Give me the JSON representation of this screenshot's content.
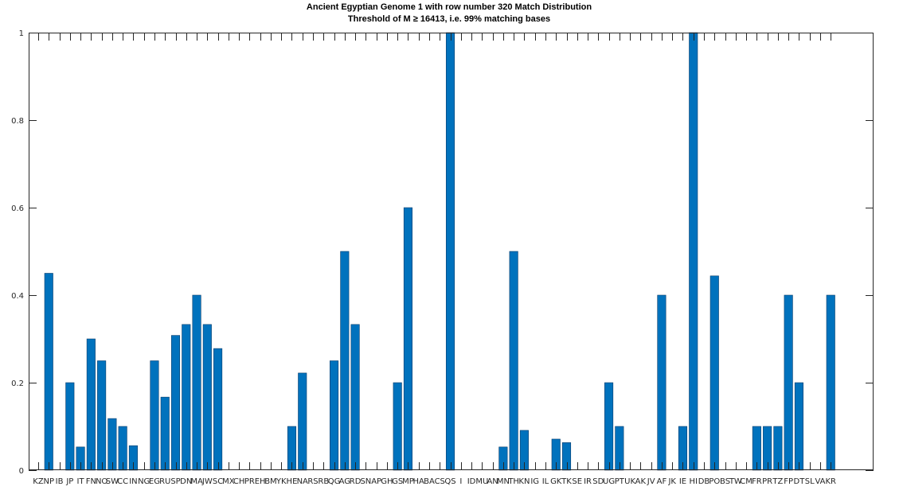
{
  "chart_data": {
    "type": "bar",
    "title": "Ancient Egyptian Genome 1 with row number 320 Match Distribution",
    "subtitle": "Threshold of M ≥ 16413, i.e. 99% matching bases",
    "xlabel": "",
    "ylabel": "",
    "ylim": [
      0,
      1
    ],
    "yticks": [
      0,
      0.2,
      0.4,
      0.6,
      0.8,
      1
    ],
    "ytick_labels": [
      "0",
      "0.2",
      "0.4",
      "0.6",
      "0.8",
      "1"
    ],
    "grid": false,
    "bar_color": "#0072bd",
    "categories": [
      "KZ",
      "NP",
      "IB",
      "JP",
      "IT",
      "FN",
      "NO",
      "SW",
      "CC",
      "IN",
      "NG",
      "EG",
      "RU",
      "SP",
      "DN",
      "MA",
      "JW",
      "SC",
      "MX",
      "CH",
      "PR",
      "EH",
      "BM",
      "YK",
      "HE",
      "NA",
      "RS",
      "RB",
      "QG",
      "AG",
      "RD",
      "SN",
      "AP",
      "GH",
      "GS",
      "MP",
      "HA",
      "BA",
      "CS",
      "QS",
      "I",
      "ID",
      "MU",
      "AN",
      "MN",
      "TH",
      "KN",
      "IG",
      "IL",
      "GK",
      "TK",
      "SE",
      "IR",
      "SD",
      "UG",
      "PT",
      "UK",
      "AK",
      "JV",
      "AF",
      "JK",
      "IE",
      "HI",
      "DB",
      "PO",
      "BS",
      "TW",
      "CM",
      "FR",
      "PR",
      "TZ",
      "FP",
      "DT",
      "SL",
      "VA",
      "KR"
    ],
    "values": [
      0,
      0.45,
      0,
      0.2,
      0.053,
      0.3,
      0.25,
      0.118,
      0.1,
      0.056,
      0,
      0.25,
      0.167,
      0.308,
      0.333,
      0.4,
      0.333,
      0.278,
      0,
      0,
      0,
      0,
      0,
      0,
      0.1,
      0.222,
      0,
      0,
      0.25,
      0.5,
      0.333,
      0,
      0,
      0,
      0.2,
      0.6,
      0,
      0,
      0,
      1,
      0,
      0,
      0,
      0,
      0.053,
      0.5,
      0.091,
      0,
      0,
      0.071,
      0.063,
      0,
      0,
      0,
      0.2,
      0.1,
      0,
      0,
      0,
      0.4,
      0,
      0.1,
      1,
      0,
      0.444,
      0,
      0,
      0,
      0.1,
      0.1,
      0.1,
      0.4,
      0.2,
      0,
      0,
      0.4
    ],
    "x_tick_labels": [
      "KZ",
      "NP",
      "IB",
      "JP",
      "IT",
      "FN",
      "NO",
      "SW",
      "CC",
      "IN",
      "NG",
      "EG",
      "RU",
      "SP",
      "DN",
      "MA",
      "JW",
      "SC",
      "MX",
      "CH",
      "PR",
      "EH",
      "BM",
      "YK",
      "HE",
      "NA",
      "RS",
      "RB",
      "QG",
      "AG",
      "RD",
      "SN",
      "AP",
      "GH",
      "GS",
      "MP",
      "HA",
      "BA",
      "CS",
      "QS",
      "I",
      "ID",
      "MU",
      "AN",
      "MN",
      "TH",
      "KN",
      "IG",
      "IL",
      "GK",
      "TK",
      "SE",
      "IR",
      "SD",
      "UG",
      "PT",
      "UK",
      "AK",
      "JV",
      "AF",
      "JK",
      "IE",
      "HI",
      "DB",
      "PO",
      "BS",
      "TW",
      "CM",
      "FR",
      "PR",
      "TZ",
      "FP",
      "DT",
      "SL",
      "VA",
      "KR"
    ]
  }
}
